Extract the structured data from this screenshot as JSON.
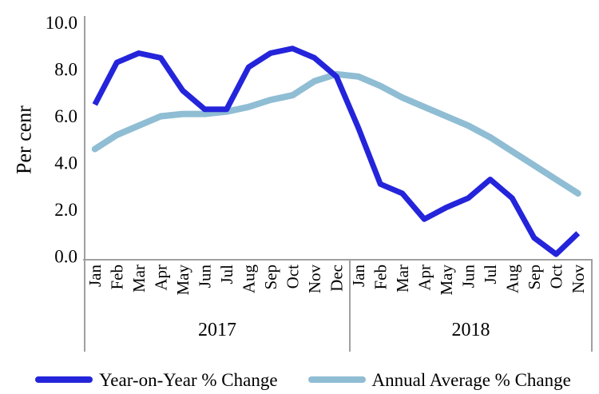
{
  "chart_data": {
    "type": "line",
    "title": "",
    "ylabel": "Per cenr",
    "ylim": [
      0,
      10
    ],
    "ytick_step": 2,
    "ytick_labels": [
      "0.0",
      "2.0",
      "4.0",
      "6.0",
      "8.0",
      "10.0"
    ],
    "grid": false,
    "legend_position": "bottom",
    "axis_color": "#a0a0a0",
    "x_groups": [
      {
        "year": "2017",
        "months": [
          "Jan",
          "Feb",
          "Mar",
          "Apr",
          "May",
          "Jun",
          "Jul",
          "Aug",
          "Sep",
          "Oct",
          "Nov",
          "Dec"
        ]
      },
      {
        "year": "2018",
        "months": [
          "Jan",
          "Feb",
          "Mar",
          "Apr",
          "May",
          "Jun",
          "Jul",
          "Aug",
          "Sep",
          "Oct",
          "Nov"
        ]
      }
    ],
    "series": [
      {
        "name": "Year-on-Year % Change",
        "color": "#2424db",
        "values": [
          6.5,
          8.3,
          8.7,
          8.5,
          7.1,
          6.3,
          6.3,
          8.1,
          8.7,
          8.9,
          8.5,
          7.7,
          5.5,
          3.1,
          2.7,
          1.6,
          2.1,
          2.5,
          3.3,
          2.5,
          0.8,
          0.1,
          1.0
        ]
      },
      {
        "name": "Annual Average % Change",
        "color": "#8fbdd4",
        "values": [
          4.6,
          5.2,
          5.6,
          6.0,
          6.1,
          6.1,
          6.2,
          6.4,
          6.7,
          6.9,
          7.5,
          7.8,
          7.7,
          7.3,
          6.8,
          6.4,
          6.0,
          5.6,
          5.1,
          4.5,
          3.9,
          3.3,
          2.7
        ]
      }
    ]
  },
  "legend": {
    "yoy_label": "Year-on-Year % Change",
    "avg_label": "Annual Average % Change"
  }
}
